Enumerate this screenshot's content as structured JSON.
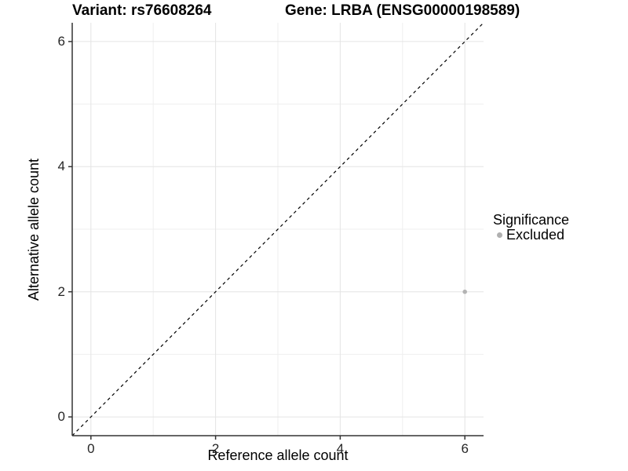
{
  "titles": {
    "variant": "Variant: rs76608264",
    "gene": "Gene: LRBA (ENSG00000198589)"
  },
  "chart_data": {
    "type": "scatter",
    "xlabel": "Reference allele count",
    "ylabel": "Alternative allele count",
    "xlim": [
      -0.3,
      6.3
    ],
    "ylim": [
      -0.3,
      6.3
    ],
    "x_ticks": [
      0,
      2,
      4,
      6
    ],
    "y_ticks": [
      0,
      2,
      4,
      6
    ],
    "grid": true,
    "identity_line": {
      "style": "dashed",
      "slope": 1,
      "intercept": 0,
      "color": "#000000"
    },
    "series": [
      {
        "name": "Excluded",
        "color": "#b3b3b3",
        "points": [
          [
            6,
            2
          ]
        ]
      }
    ],
    "legend": {
      "position": "right",
      "title": "Significance",
      "items": [
        {
          "label": "Excluded",
          "color": "#b0b0b0",
          "marker": "circle"
        }
      ]
    }
  },
  "colors": {
    "background": "#ffffff",
    "grid_major": "#e4e4e4",
    "grid_minor": "#efefef",
    "axis_line": "#333333",
    "tick_text": "#262626",
    "title_text": "#000000",
    "point": "#b3b3b3"
  }
}
